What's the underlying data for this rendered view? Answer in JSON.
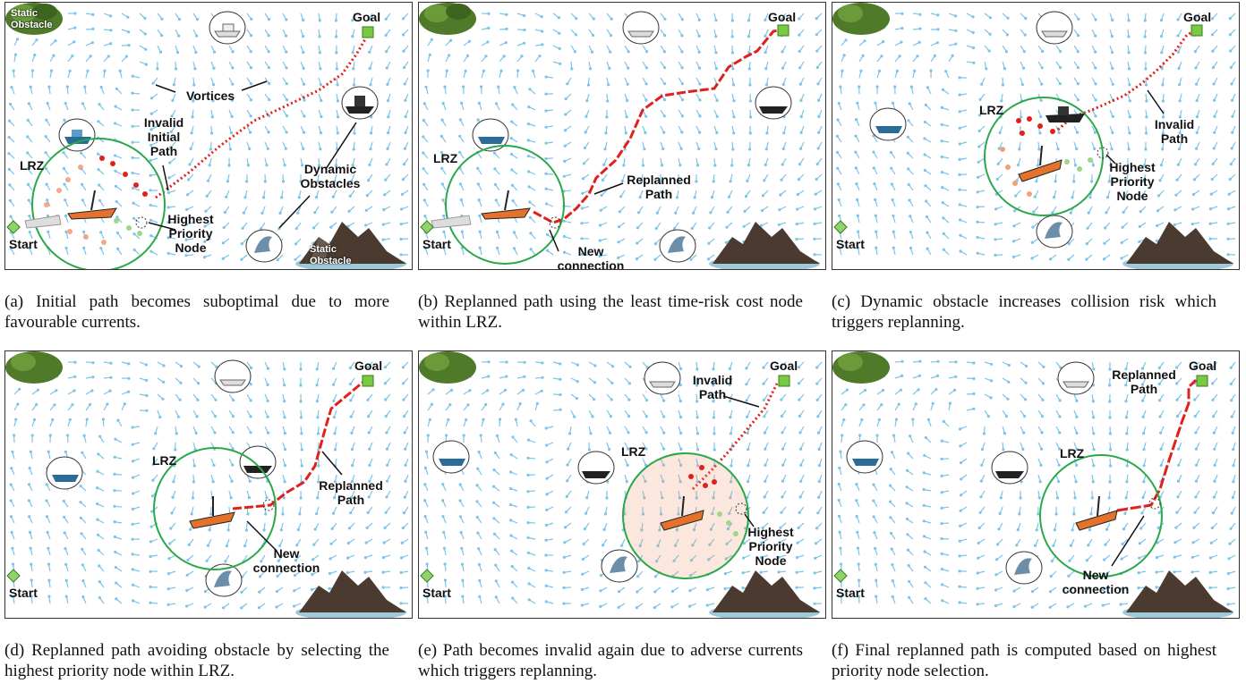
{
  "panels": [
    {
      "id": "a",
      "caption": "(a) Initial path becomes suboptimal due to more favourable currents.",
      "labels": {
        "goal": "Goal",
        "start": "Start",
        "lrz": "LRZ",
        "static_obstacle_top": "Static Obstacle",
        "static_obstacle_bottom": "Static Obstacle",
        "vortices": "Vortices",
        "invalid_initial_path": "Invalid Initial Path",
        "dynamic_obstacles": "Dynamic Obstacles",
        "highest_priority_node": "Highest Priority Node"
      }
    },
    {
      "id": "b",
      "caption": "(b) Replanned path using the least time-risk cost node within LRZ.",
      "labels": {
        "goal": "Goal",
        "start": "Start",
        "lrz": "LRZ",
        "replanned_path": "Replanned Path",
        "new_connection": "New connection"
      }
    },
    {
      "id": "c",
      "caption": "(c) Dynamic obstacle increases collision risk which triggers replanning.",
      "labels": {
        "goal": "Goal",
        "start": "Start",
        "lrz": "LRZ",
        "invalid_path": "Invalid Path",
        "highest_priority_node": "Highest Priority Node"
      }
    },
    {
      "id": "d",
      "caption": "(d) Replanned path avoiding obstacle by selecting the highest priority node within LRZ.",
      "labels": {
        "goal": "Goal",
        "start": "Start",
        "lrz": "LRZ",
        "replanned_path": "Replanned Path",
        "new_connection": "New connection"
      }
    },
    {
      "id": "e",
      "caption": "(e) Path becomes invalid again due to adverse currents which triggers replanning.",
      "labels": {
        "goal": "Goal",
        "start": "Start",
        "lrz": "LRZ",
        "invalid_path": "Invalid Path",
        "highest_priority_node": "Highest Priority Node"
      }
    },
    {
      "id": "f",
      "caption": "(f) Final replanned path is computed based on highest priority node selection.",
      "labels": {
        "goal": "Goal",
        "start": "Start",
        "lrz": "LRZ",
        "replanned_path": "Replanned Path",
        "new_connection": "New connection"
      }
    }
  ],
  "colors": {
    "current_arrows": "#7cc4e8",
    "path": "#e0201c",
    "lrz_circle": "#2aa84a",
    "goal_marker": "#7ac943",
    "start_marker": "#8fd36b",
    "vessel_hull": "#e4722a",
    "rock": "#4a3a30",
    "forest": "#4f7a2a"
  },
  "icons": [
    "vessel-icon",
    "boat-icon",
    "ship-icon",
    "dolphin-icon",
    "rock-icon",
    "forest-icon",
    "goal-marker-icon",
    "start-marker-icon"
  ]
}
